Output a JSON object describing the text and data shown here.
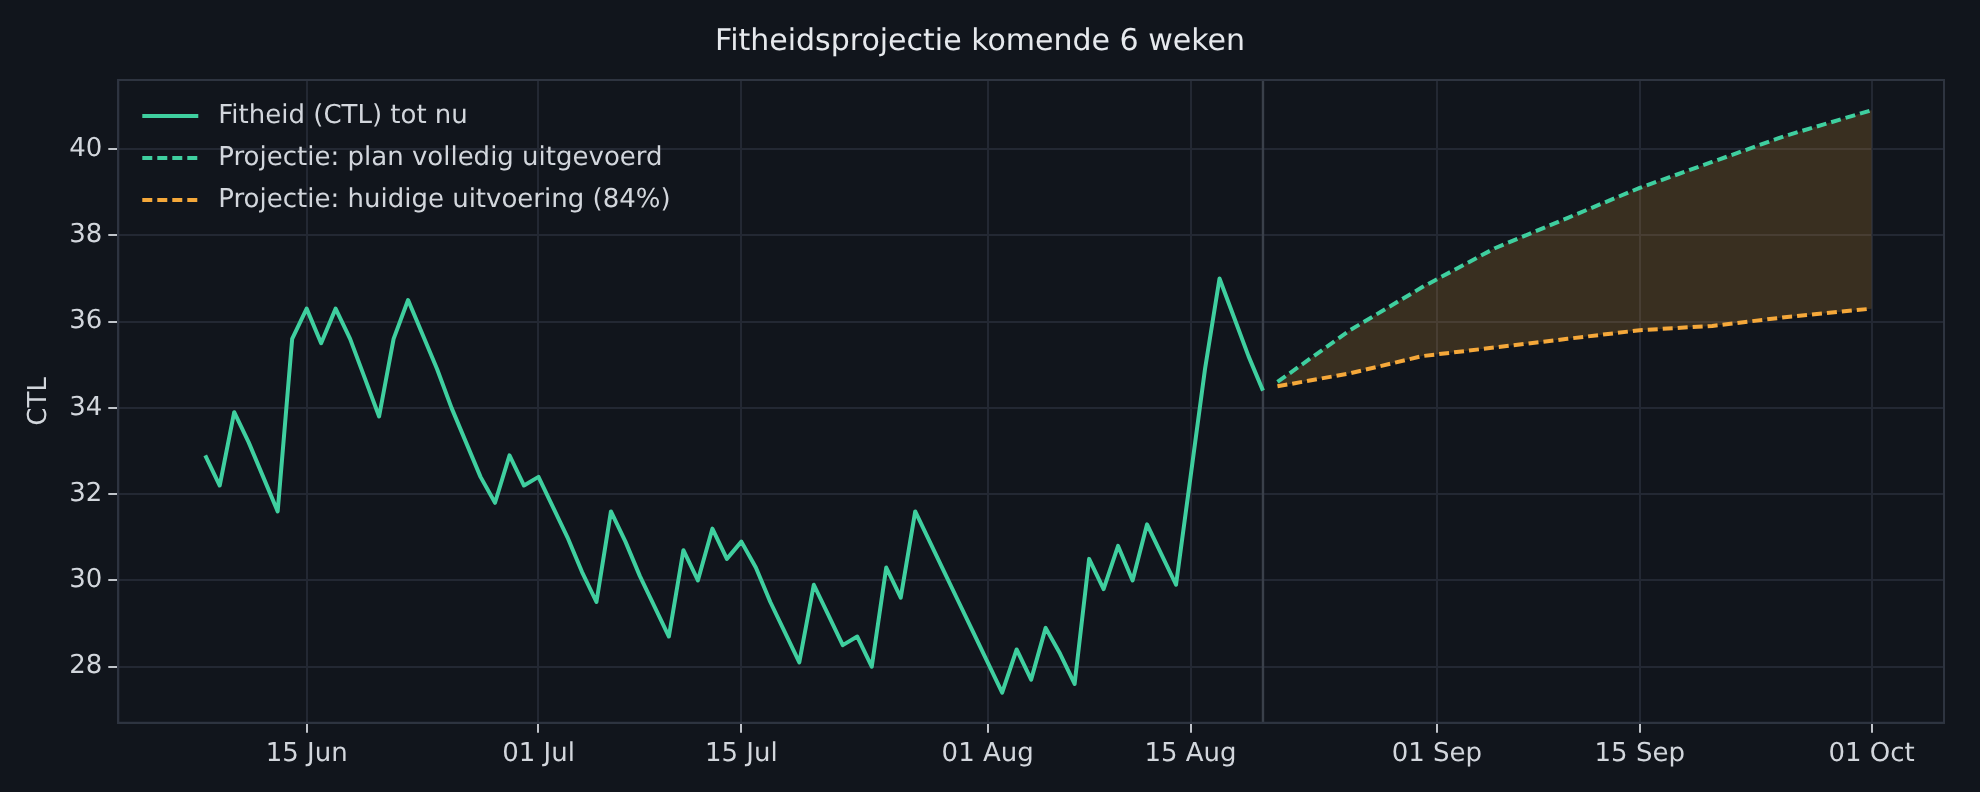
{
  "chart_data": {
    "type": "line",
    "title": "Fitheidsprojectie komende 6 weken",
    "ylabel": "CTL",
    "xlim": [
      "--06-02",
      "--10-06"
    ],
    "ylim": [
      26.7,
      41.6
    ],
    "xticks": [
      {
        "value": "--06-15",
        "label": "15 Jun"
      },
      {
        "value": "--07-01",
        "label": "01 Jul"
      },
      {
        "value": "--07-15",
        "label": "15 Jul"
      },
      {
        "value": "--08-01",
        "label": "01 Aug"
      },
      {
        "value": "--08-15",
        "label": "15 Aug"
      },
      {
        "value": "--09-01",
        "label": "01 Sep"
      },
      {
        "value": "--09-15",
        "label": "15 Sep"
      },
      {
        "value": "--10-01",
        "label": "01 Oct"
      }
    ],
    "yticks": [
      28,
      30,
      32,
      34,
      36,
      38,
      40
    ],
    "grid": true,
    "legend": "top left",
    "marker": "none",
    "ref_lines": [
      {
        "axis": "x",
        "value": "--08-20",
        "color": "#3a404a"
      }
    ],
    "series": [
      {
        "name": "Fitheid (CTL) tot nu",
        "color": "#3fcf9f",
        "line_style": "solid",
        "x": [
          "--06-08",
          "--06-09",
          "--06-10",
          "--06-11",
          "--06-12",
          "--06-13",
          "--06-14",
          "--06-15",
          "--06-16",
          "--06-17",
          "--06-18",
          "--06-19",
          "--06-20",
          "--06-21",
          "--06-22",
          "--06-23",
          "--06-24",
          "--06-25",
          "--06-26",
          "--06-27",
          "--06-28",
          "--06-29",
          "--06-30",
          "--07-01",
          "--07-02",
          "--07-03",
          "--07-04",
          "--07-05",
          "--07-06",
          "--07-07",
          "--07-08",
          "--07-09",
          "--07-10",
          "--07-11",
          "--07-12",
          "--07-13",
          "--07-14",
          "--07-15",
          "--07-16",
          "--07-17",
          "--07-18",
          "--07-19",
          "--07-20",
          "--07-21",
          "--07-22",
          "--07-23",
          "--07-24",
          "--07-25",
          "--07-26",
          "--07-27",
          "--07-28",
          "--07-29",
          "--07-30",
          "--07-31",
          "--08-01",
          "--08-02",
          "--08-03",
          "--08-04",
          "--08-05",
          "--08-06",
          "--08-07",
          "--08-08",
          "--08-09",
          "--08-10",
          "--08-11",
          "--08-12",
          "--08-13",
          "--08-14",
          "--08-15",
          "--08-16",
          "--08-17",
          "--08-18",
          "--08-19",
          "--08-20"
        ],
        "values": [
          32.9,
          32.2,
          33.9,
          33.2,
          32.4,
          31.6,
          35.6,
          36.3,
          35.5,
          36.3,
          35.6,
          34.7,
          33.8,
          35.6,
          36.5,
          35.7,
          34.9,
          34.0,
          33.2,
          32.4,
          31.8,
          32.9,
          32.2,
          32.4,
          31.7,
          31.0,
          30.2,
          29.5,
          31.6,
          30.9,
          30.1,
          29.4,
          28.7,
          30.7,
          30.0,
          31.2,
          30.5,
          30.9,
          30.3,
          29.5,
          28.8,
          28.1,
          29.9,
          29.2,
          28.5,
          28.7,
          28.0,
          30.3,
          29.6,
          31.6,
          30.9,
          30.2,
          29.5,
          28.8,
          28.1,
          27.4,
          28.4,
          27.7,
          28.9,
          28.3,
          27.6,
          30.5,
          29.8,
          30.8,
          30.0,
          31.3,
          30.6,
          29.9,
          32.4,
          34.9,
          37.0,
          36.1,
          35.2,
          34.4
        ]
      },
      {
        "name": "Projectie: plan volledig uitgevoerd",
        "color": "#3fcf9f",
        "line_style": "dashed",
        "x": [
          "--08-21",
          "--08-26",
          "--08-31",
          "--09-05",
          "--09-10",
          "--09-15",
          "--09-20",
          "--09-25",
          "--10-01"
        ],
        "values": [
          34.6,
          35.8,
          36.8,
          37.7,
          38.4,
          39.1,
          39.7,
          40.3,
          40.9
        ]
      },
      {
        "name": "Projectie: huidige uitvoering (84%)",
        "color": "#f5a83a",
        "line_style": "dashed",
        "x": [
          "--08-21",
          "--08-26",
          "--08-31",
          "--09-05",
          "--09-10",
          "--09-15",
          "--09-20",
          "--09-25",
          "--10-01"
        ],
        "values": [
          34.5,
          34.8,
          35.2,
          35.4,
          35.6,
          35.8,
          35.9,
          36.1,
          36.3
        ],
        "lower": [
          34.5,
          34.8,
          35.2,
          35.4,
          35.6,
          35.8,
          35.9,
          36.1,
          36.3
        ],
        "upper": [
          34.6,
          35.8,
          36.8,
          37.7,
          38.4,
          39.1,
          39.7,
          40.3,
          40.9
        ]
      }
    ]
  }
}
